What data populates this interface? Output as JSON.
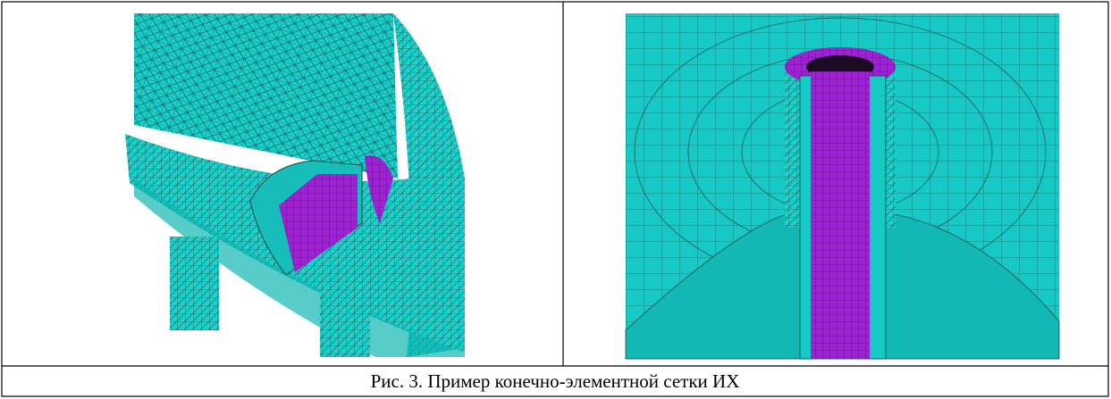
{
  "caption": "Рис. 3. Пример конечно-элементной сетки ИХ"
}
